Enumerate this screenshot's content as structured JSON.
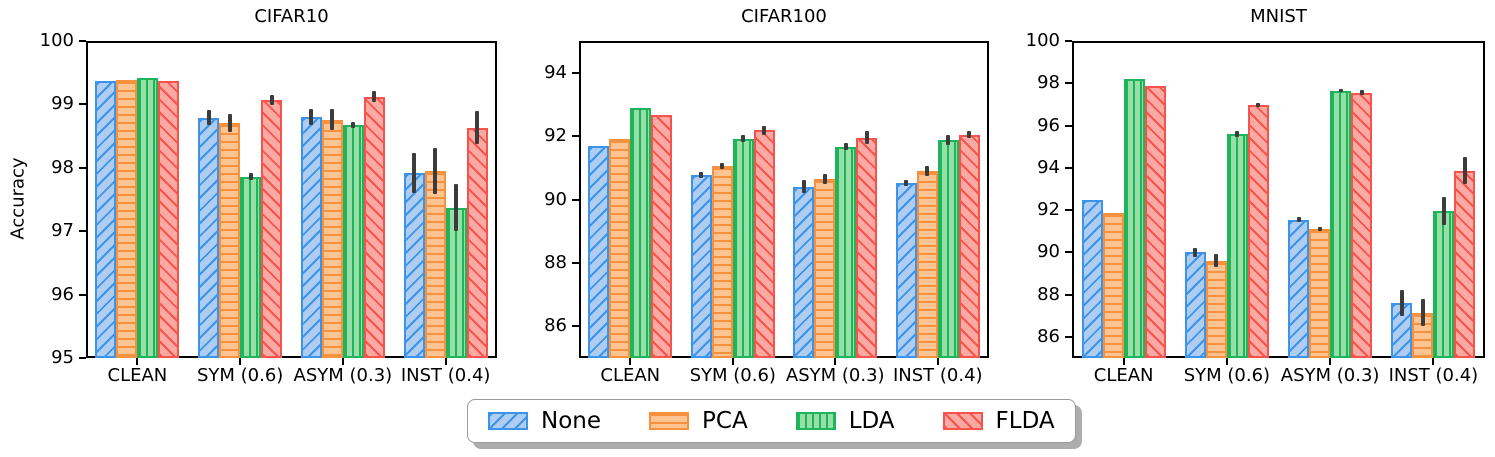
{
  "figure": {
    "ylabel": "Accuracy",
    "background": "#ffffff",
    "spine_color": "#000000",
    "error_bar_color": "#3c3c3c"
  },
  "series_styles": [
    {
      "name": "None",
      "face": "#aecdf1",
      "edge": "#3b94e9",
      "hatch": "diag-up"
    },
    {
      "name": "PCA",
      "face": "#fbc492",
      "edge": "#f8913e",
      "hatch": "horizontal"
    },
    {
      "name": "LDA",
      "face": "#97dfa6",
      "edge": "#1eb45b",
      "hatch": "vertical"
    },
    {
      "name": "FLDA",
      "face": "#fba9a3",
      "edge": "#f8524c",
      "hatch": "diag-down"
    }
  ],
  "legend": {
    "items": [
      "None",
      "PCA",
      "LDA",
      "FLDA"
    ]
  },
  "chart_data": [
    {
      "type": "bar",
      "title": "CIFAR10",
      "ylabel": "Accuracy",
      "categories": [
        "CLEAN",
        "SYM (0.6)",
        "ASYM (0.3)",
        "INST (0.4)"
      ],
      "ylim": [
        95,
        100
      ],
      "yticks": [
        95,
        96,
        97,
        98,
        99,
        100
      ],
      "grid": false,
      "series": [
        {
          "name": "None",
          "values": [
            99.37,
            98.79,
            98.8,
            97.92
          ],
          "errors": [
            0,
            0.12,
            0.13,
            0.32
          ]
        },
        {
          "name": "PCA",
          "values": [
            99.39,
            98.71,
            98.76,
            97.95
          ],
          "errors": [
            0,
            0.14,
            0.17,
            0.36
          ]
        },
        {
          "name": "LDA",
          "values": [
            99.41,
            97.86,
            98.67,
            97.37
          ],
          "errors": [
            0,
            0.06,
            0.05,
            0.37
          ]
        },
        {
          "name": "FLDA",
          "values": [
            99.37,
            99.07,
            99.12,
            98.63
          ],
          "errors": [
            0,
            0.08,
            0.09,
            0.26
          ]
        }
      ]
    },
    {
      "type": "bar",
      "title": "CIFAR100",
      "ylabel": "",
      "categories": [
        "CLEAN",
        "SYM (0.6)",
        "ASYM (0.3)",
        "INST (0.4)"
      ],
      "ylim": [
        85,
        95
      ],
      "yticks": [
        86,
        88,
        90,
        92,
        94
      ],
      "grid": false,
      "series": [
        {
          "name": "None",
          "values": [
            91.7,
            90.78,
            90.4,
            90.52
          ],
          "errors": [
            0,
            0.09,
            0.2,
            0.1
          ]
        },
        {
          "name": "PCA",
          "values": [
            91.9,
            91.05,
            90.65,
            90.9
          ],
          "errors": [
            0,
            0.1,
            0.15,
            0.15
          ]
        },
        {
          "name": "LDA",
          "values": [
            92.88,
            91.92,
            91.67,
            91.88
          ],
          "errors": [
            0,
            0.1,
            0.12,
            0.15
          ]
        },
        {
          "name": "FLDA",
          "values": [
            92.65,
            92.18,
            91.95,
            92.05
          ],
          "errors": [
            0,
            0.15,
            0.2,
            0.12
          ]
        }
      ]
    },
    {
      "type": "bar",
      "title": "MNIST",
      "ylabel": "",
      "categories": [
        "CLEAN",
        "SYM (0.6)",
        "ASYM (0.3)",
        "INST (0.4)"
      ],
      "ylim": [
        85,
        100
      ],
      "yticks": [
        86,
        88,
        90,
        92,
        94,
        96,
        98,
        100
      ],
      "grid": false,
      "series": [
        {
          "name": "None",
          "values": [
            92.5,
            90.0,
            91.55,
            87.6
          ],
          "errors": [
            0,
            0.2,
            0.1,
            0.6
          ]
        },
        {
          "name": "PCA",
          "values": [
            91.87,
            89.6,
            91.1,
            87.15
          ],
          "errors": [
            0,
            0.3,
            0.1,
            0.65
          ]
        },
        {
          "name": "LDA",
          "values": [
            98.2,
            95.6,
            97.65,
            91.95
          ],
          "errors": [
            0,
            0.15,
            0.07,
            0.65
          ]
        },
        {
          "name": "FLDA",
          "values": [
            97.87,
            96.97,
            97.55,
            93.87
          ],
          "errors": [
            0,
            0.1,
            0.12,
            0.65
          ]
        }
      ]
    }
  ]
}
